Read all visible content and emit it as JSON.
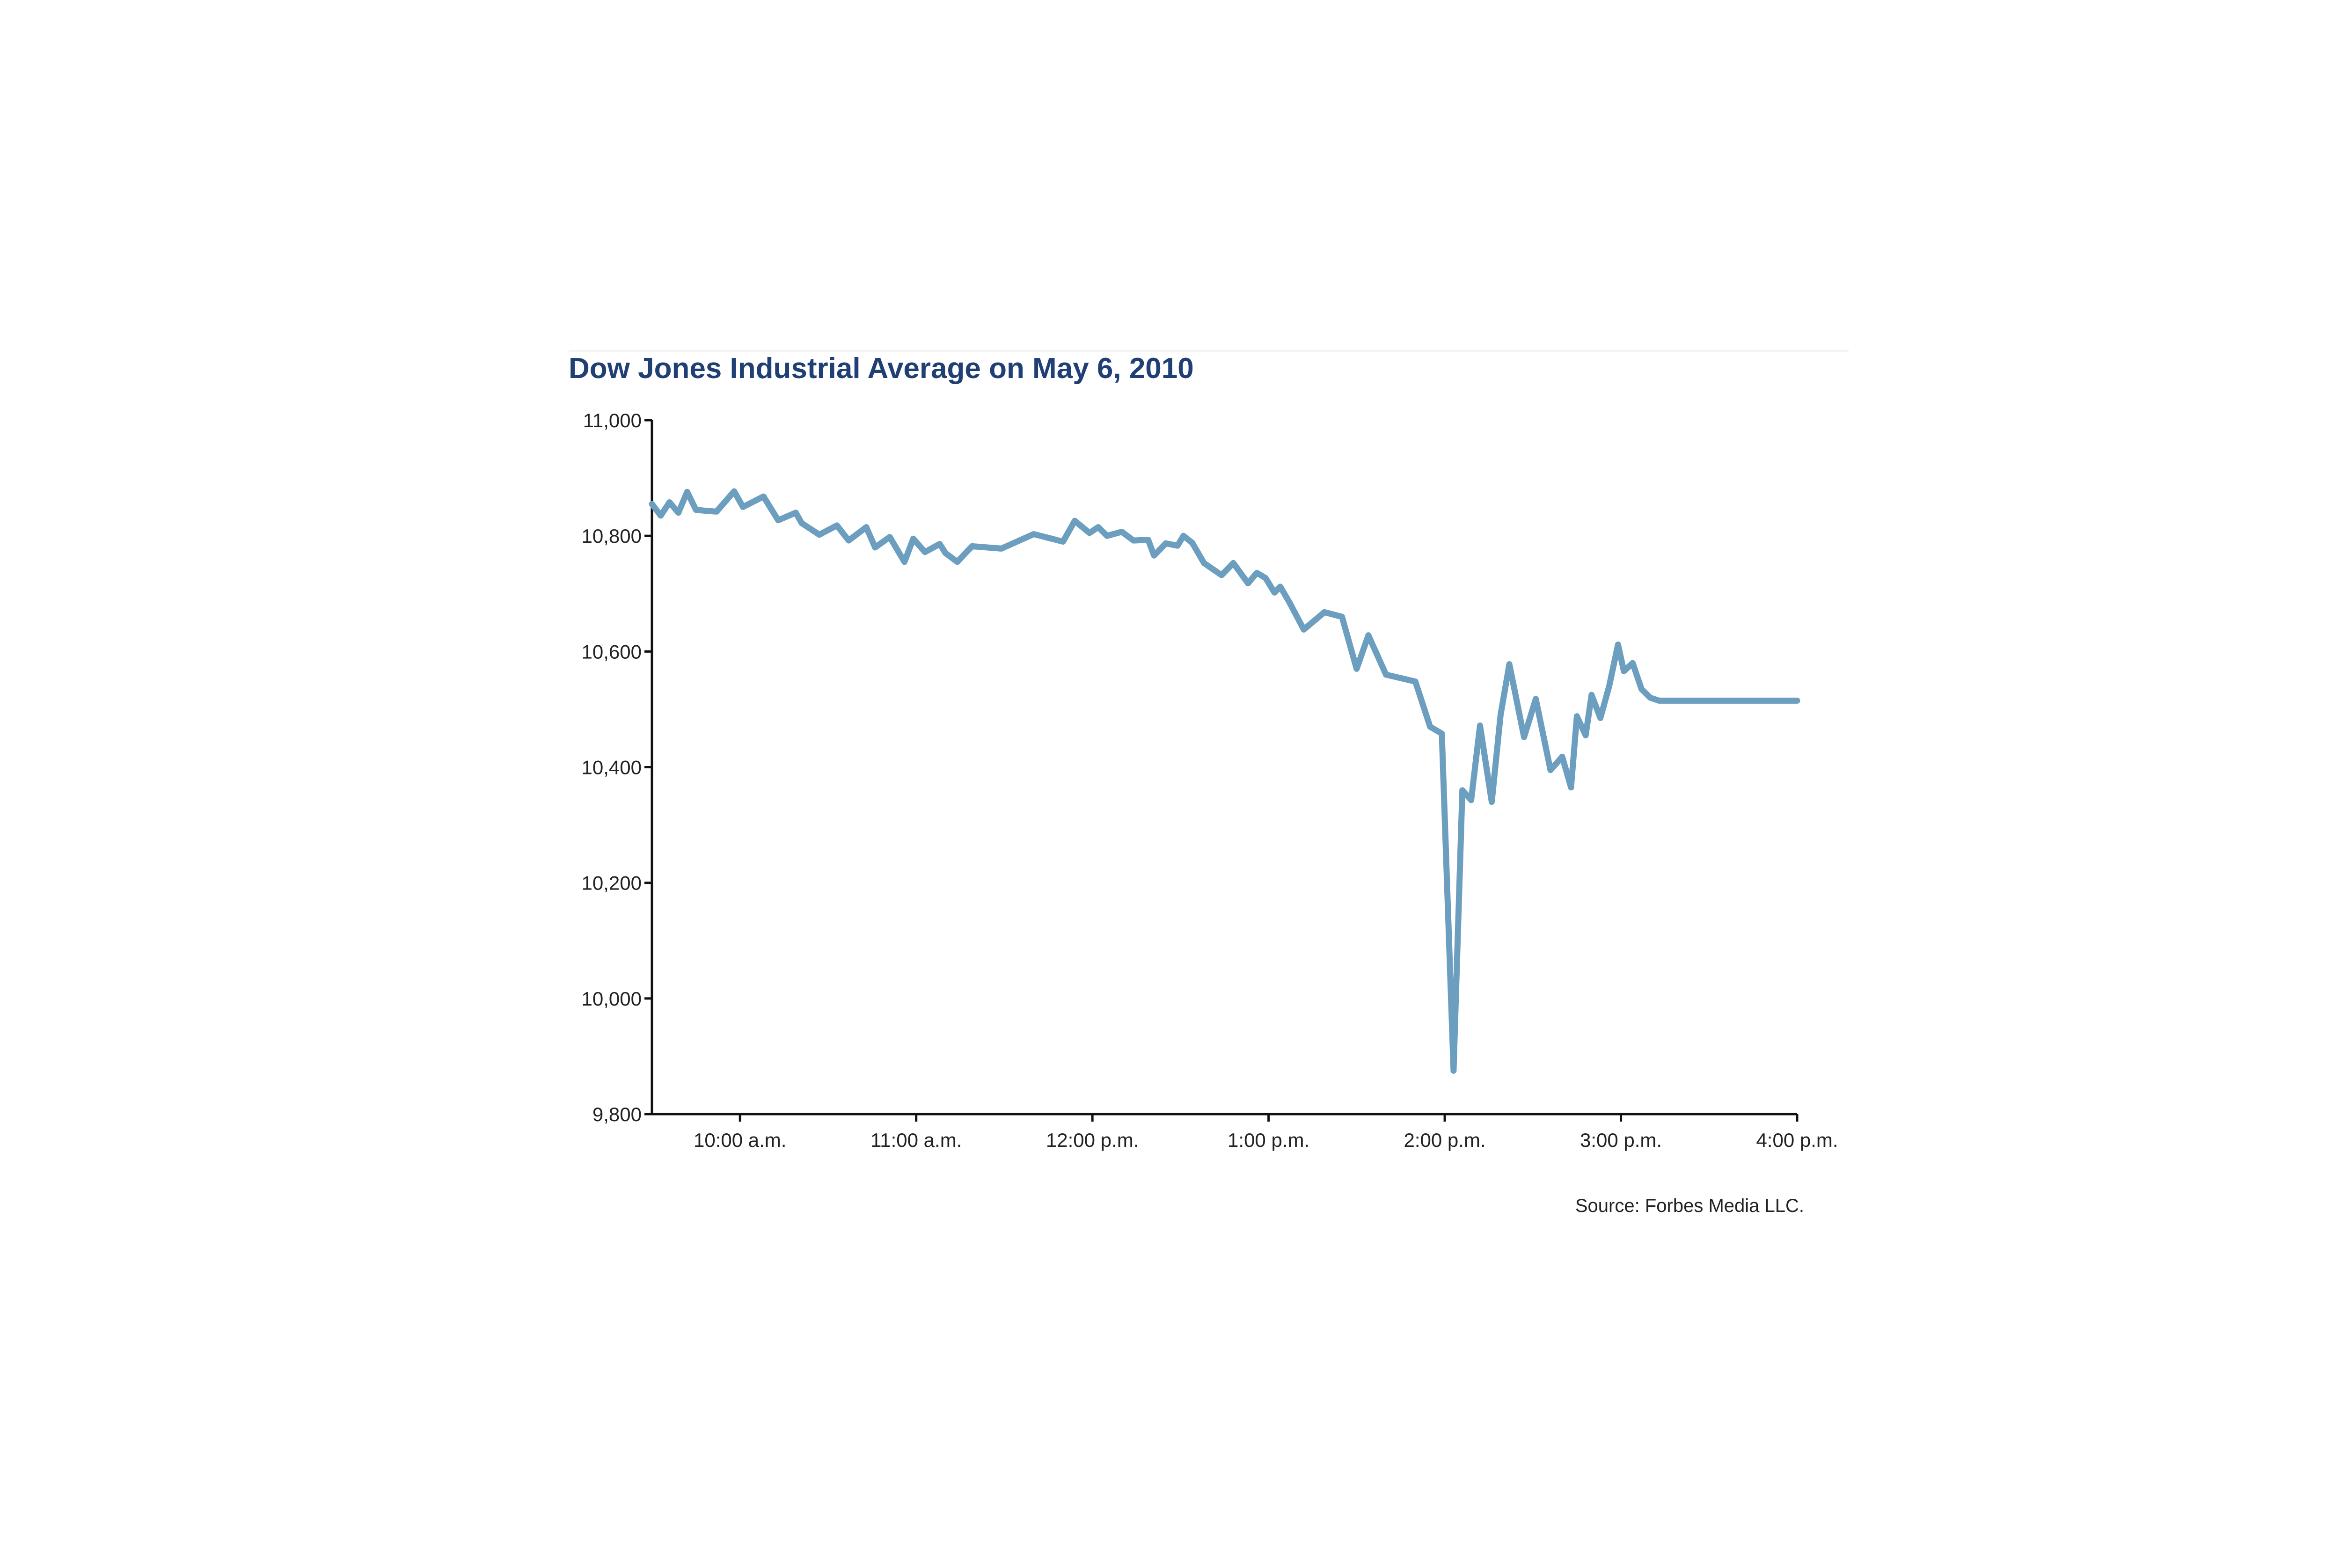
{
  "chart_data": {
    "type": "line",
    "title": "Dow Jones Industrial Average on May 6, 2010",
    "xlabel": "",
    "ylabel": "",
    "ylim": [
      9800,
      11000
    ],
    "y_ticks": [
      11000,
      10800,
      10600,
      10400,
      10200,
      10000,
      9800
    ],
    "y_tick_labels": [
      "11,000",
      "10,800",
      "10,600",
      "10,400",
      "10,200",
      "10,000",
      "9,800"
    ],
    "xlim": [
      "09:30",
      "16:00"
    ],
    "x_ticks": [
      "10:00",
      "11:00",
      "12:00",
      "13:00",
      "14:00",
      "15:00",
      "16:00"
    ],
    "x_tick_labels": [
      "10:00 a.m.",
      "11:00 a.m.",
      "12:00 p.m.",
      "1:00 p.m.",
      "2:00 p.m.",
      "3:00 p.m.",
      "4:00 p.m."
    ],
    "grid": false,
    "legend": "none",
    "line_color": "#6b9ebf",
    "series": [
      {
        "x": [
          "09:30",
          "09:33",
          "09:36",
          "09:39",
          "09:42",
          "09:45",
          "09:49",
          "09:52",
          "09:58",
          "10:01",
          "10:08",
          "10:13",
          "10:19",
          "10:21",
          "10:27",
          "10:33",
          "10:37",
          "10:43",
          "10:46",
          "10:51",
          "10:56",
          "10:59",
          "11:03",
          "11:08",
          "11:10",
          "11:14",
          "11:19",
          "11:29",
          "11:40",
          "11:50",
          "11:54",
          "11:59",
          "12:02",
          "12:05",
          "12:10",
          "12:14",
          "12:19",
          "12:21",
          "12:25",
          "12:29",
          "12:31",
          "12:34",
          "12:38",
          "12:44",
          "12:48",
          "12:53",
          "12:56",
          "12:59",
          "13:02",
          "13:04",
          "13:07",
          "13:12",
          "13:19",
          "13:25",
          "13:30",
          "13:34",
          "13:40",
          "13:50",
          "13:55",
          "13:59",
          "14:03",
          "14:06",
          "14:09",
          "14:12",
          "14:16",
          "14:19",
          "14:22",
          "14:27",
          "14:31",
          "14:36",
          "14:40",
          "14:43",
          "14:45",
          "14:48",
          "14:50",
          "14:53",
          "14:56",
          "14:59",
          "15:01",
          "15:04",
          "15:07",
          "15:10",
          "15:13",
          "15:16",
          "15:18",
          "15:21",
          "15:23",
          "15:26",
          "15:28",
          "15:31",
          "15:34",
          "15:36",
          "15:39",
          "15:42",
          "15:44",
          "15:46",
          "15:49",
          "15:52",
          "15:54",
          "15:58",
          "16:00"
        ],
        "values": [
          10855,
          10835,
          10858,
          10840,
          10876,
          10845,
          10843,
          10842,
          10877,
          10850,
          10868,
          10827,
          10840,
          10822,
          10802,
          10818,
          10792,
          10815,
          10780,
          10798,
          10755,
          10795,
          10772,
          10786,
          10770,
          10755,
          10782,
          10778,
          10803,
          10790,
          10826,
          10805,
          10815,
          10800,
          10807,
          10792,
          10793,
          10766,
          10787,
          10783,
          10800,
          10788,
          10753,
          10732,
          10753,
          10718,
          10736,
          10727,
          10702,
          10712,
          10686,
          10638,
          10668,
          10660,
          10570,
          10628,
          10560,
          10548,
          10470,
          10458,
          9875,
          10360,
          10343,
          10472,
          10340,
          10490,
          10578,
          10452,
          10518,
          10395,
          10418,
          10365,
          10488,
          10455,
          10525,
          10485,
          10540,
          10612,
          10566,
          10580,
          10535,
          10520,
          10515,
          10515,
          10515,
          10515,
          10515,
          10515,
          10515,
          10515,
          10515,
          10515,
          10515,
          10515,
          10515,
          10515,
          10515,
          10515,
          10515,
          10515,
          10515
        ]
      }
    ]
  },
  "source_note": "Source: Forbes Media LLC."
}
